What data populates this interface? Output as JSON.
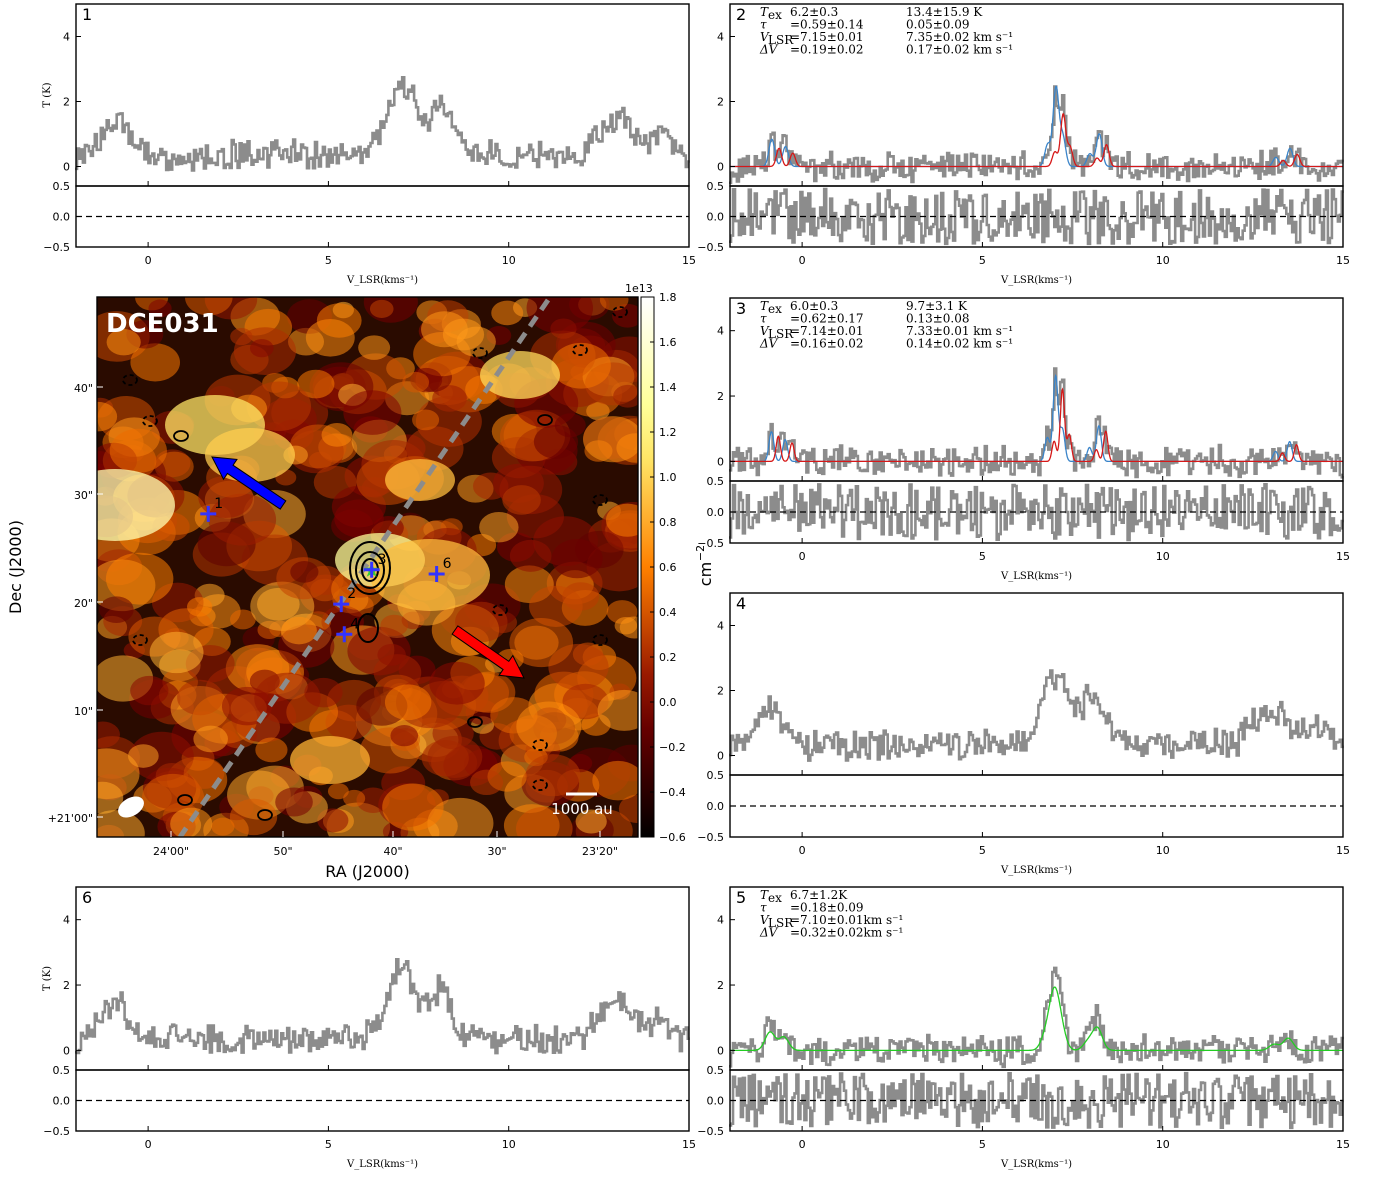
{
  "chart_data": [
    {
      "type": "image",
      "source_label": "DCE031",
      "xlabel": "RA (J2000)",
      "ylabel": "Dec (J2000)",
      "x_ticks": [
        "24'00\"",
        "50\"",
        "40\"",
        "30\"",
        "23'20\""
      ],
      "y_ticks": [
        "+21'00\"",
        "10\"",
        "20\"",
        "30\"",
        "40\""
      ],
      "colorbar": {
        "label": "cm",
        "label_exponent": "−2",
        "offset": "1e13",
        "ticks": [
          "−0.6",
          "−0.4",
          "−0.2",
          "0.0",
          "0.2",
          "0.4",
          "0.6",
          "0.8",
          "1.0",
          "1.2",
          "1.4",
          "1.6",
          "1.8"
        ],
        "range": [
          -0.6,
          1.8
        ]
      },
      "positions": [
        {
          "id": "1",
          "ra_sec": 58.2,
          "dec_arcsec": 28.2
        },
        {
          "id": "2",
          "ra_sec": 45.1,
          "dec_arcsec": 19.8
        },
        {
          "id": "3",
          "ra_sec": 42.1,
          "dec_arcsec": 23.0
        },
        {
          "id": "4",
          "ra_sec": 44.8,
          "dec_arcsec": 17.0
        },
        {
          "id": "6",
          "ra_sec": 35.7,
          "dec_arcsec": 22.6
        }
      ],
      "scale_bar": "1000 au",
      "colors": {
        "blueshifted_arrow": "#0000ff",
        "redshifted_arrow": "#ff0000",
        "markers": "#3333ff",
        "star": "#33cc33",
        "outflow_axis": "#888888"
      }
    },
    {
      "type": "line",
      "panel": "1",
      "xlabel": "V_LSR(kms⁻¹)",
      "ylabel": "T (K)",
      "xlim": [
        -2,
        15
      ],
      "ylim": [
        -0.6,
        5
      ],
      "residual_ylim": [
        -0.5,
        0.5
      ],
      "fit": null
    },
    {
      "type": "line",
      "panel": "2",
      "xlabel": "V_LSR(kms⁻¹)",
      "ylabel": "",
      "xlim": [
        -2,
        15
      ],
      "ylim": [
        -0.6,
        5
      ],
      "residual_ylim": [
        -0.5,
        0.5
      ],
      "fit": {
        "components": 2,
        "Tex": [
          "6.2±0.3",
          "13.4±15.9 K"
        ],
        "tau": [
          "=0.59±0.14",
          "0.05±0.09"
        ],
        "VLSR": [
          "=7.15±0.01",
          "7.35±0.02 km s⁻¹"
        ],
        "dV": [
          "=0.19±0.02",
          "0.17±0.02 km s⁻¹"
        ],
        "v": [
          7.15,
          7.35
        ],
        "w": [
          0.19,
          0.17
        ],
        "a": [
          2.4,
          1.6
        ]
      }
    },
    {
      "type": "line",
      "panel": "3",
      "xlabel": "V_LSR(kms⁻¹)",
      "ylabel": "",
      "xlim": [
        -2,
        15
      ],
      "ylim": [
        -0.6,
        5
      ],
      "residual_ylim": [
        -0.5,
        0.5
      ],
      "fit": {
        "components": 2,
        "Tex": [
          "6.0±0.3",
          "9.7±3.1 K"
        ],
        "tau": [
          "=0.62±0.17",
          "0.13±0.08"
        ],
        "VLSR": [
          "=7.14±0.01",
          "7.33±0.01 km s⁻¹"
        ],
        "dV": [
          "=0.16±0.02",
          "0.14±0.02 km s⁻¹"
        ],
        "v": [
          7.14,
          7.33
        ],
        "w": [
          0.16,
          0.14
        ],
        "a": [
          2.6,
          2.2
        ]
      }
    },
    {
      "type": "line",
      "panel": "4",
      "xlabel": "V_LSR(kms⁻¹)",
      "ylabel": "",
      "xlim": [
        -2,
        15
      ],
      "ylim": [
        -0.6,
        5
      ],
      "residual_ylim": [
        -0.5,
        0.5
      ],
      "fit": null
    },
    {
      "type": "line",
      "panel": "6",
      "xlabel": "V_LSR(kms⁻¹)",
      "ylabel": "T (K)",
      "xlim": [
        -2,
        15
      ],
      "ylim": [
        -0.6,
        5
      ],
      "residual_ylim": [
        -0.5,
        0.5
      ],
      "fit": null
    },
    {
      "type": "line",
      "panel": "5",
      "xlabel": "V_LSR(kms⁻¹)",
      "ylabel": "",
      "xlim": [
        -2,
        15
      ],
      "ylim": [
        -0.6,
        5
      ],
      "residual_ylim": [
        -0.5,
        0.5
      ],
      "fit": {
        "components": 1,
        "Tex": [
          "6.7±1.2K"
        ],
        "tau": [
          "=0.18±0.09"
        ],
        "VLSR": [
          "=7.10±0.01km s⁻¹"
        ],
        "dV": [
          "=0.32±0.02km s⁻¹"
        ],
        "v": [
          7.1
        ],
        "w": [
          0.32
        ],
        "a": [
          1.6
        ]
      }
    }
  ],
  "colors": {
    "spectrum": "#8c8c8c",
    "fit_blue": "#3a84c9",
    "fit_red": "#d61818",
    "fit_green": "#22cc22"
  },
  "labels": {
    "xtick_values": [
      "0",
      "5",
      "10",
      "15"
    ],
    "ytick_values": [
      "0",
      "2",
      "4"
    ],
    "res_tick_values": [
      "0.5",
      "0.0",
      "−0.5"
    ],
    "param_names": [
      "T",
      "τ",
      "V",
      "ΔV"
    ],
    "param_subs": [
      "ex",
      "",
      "LSR",
      ""
    ]
  }
}
